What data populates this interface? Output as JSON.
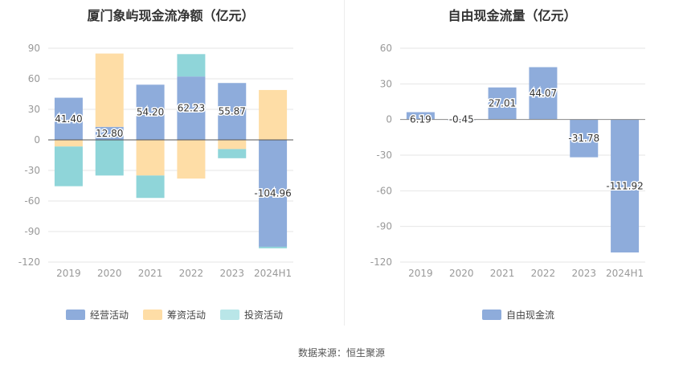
{
  "source_label": "数据来源：恒生聚源",
  "colors": {
    "operating": "#8eacdb",
    "financing": "#fedda6",
    "investing": "#8fd5d9",
    "investing_legend": "#b9e6e8",
    "fcf": "#8eacdb",
    "grid": "#e6e6e6",
    "axis_text": "#999999"
  },
  "chart_data": [
    {
      "type": "bar",
      "stacked": true,
      "title": "厦门象屿现金流净额（亿元）",
      "categories": [
        "2019",
        "2020",
        "2021",
        "2022",
        "2023",
        "2024H1"
      ],
      "ylim": [
        -120,
        90
      ],
      "yticks": [
        90,
        60,
        30,
        0,
        -30,
        -60,
        -90,
        -120
      ],
      "series": [
        {
          "name": "经营活动",
          "key": "operating",
          "values": [
            41.4,
            12.8,
            54.2,
            62.23,
            55.87,
            -104.96
          ]
        },
        {
          "name": "筹资活动",
          "key": "financing",
          "values": [
            -6.5,
            72.0,
            -35.0,
            -38.0,
            -9.0,
            49.0
          ]
        },
        {
          "name": "投资活动",
          "key": "investing",
          "values": [
            -39.0,
            -35.0,
            -22.0,
            22.0,
            -9.0,
            -1.5
          ]
        }
      ],
      "data_labels": [
        "41.40",
        "12.80",
        "54.20",
        "62.23",
        "55.87",
        "-104.96"
      ]
    },
    {
      "type": "bar",
      "title": "自由现金流量（亿元）",
      "categories": [
        "2019",
        "2020",
        "2021",
        "2022",
        "2023",
        "2024H1"
      ],
      "ylim": [
        -120,
        60
      ],
      "yticks": [
        60,
        30,
        0,
        -30,
        -60,
        -90,
        -120
      ],
      "series": [
        {
          "name": "自由现金流",
          "key": "fcf",
          "values": [
            6.19,
            -0.45,
            27.01,
            44.07,
            -31.78,
            -111.92
          ]
        }
      ],
      "data_labels": [
        "6.19",
        "-0.45",
        "27.01",
        "44.07",
        "-31.78",
        "-111.92"
      ]
    }
  ]
}
